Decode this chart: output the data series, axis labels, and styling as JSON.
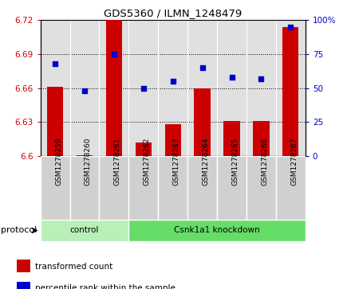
{
  "title": "GDS5360 / ILMN_1248479",
  "samples": [
    "GSM1278259",
    "GSM1278260",
    "GSM1278261",
    "GSM1278262",
    "GSM1278263",
    "GSM1278264",
    "GSM1278265",
    "GSM1278266",
    "GSM1278267"
  ],
  "bar_values": [
    6.661,
    6.601,
    6.72,
    6.612,
    6.628,
    6.66,
    6.631,
    6.631,
    6.714
  ],
  "dot_values": [
    68,
    48,
    75,
    50,
    55,
    65,
    58,
    57,
    95
  ],
  "bar_color": "#cc0000",
  "dot_color": "#0000cc",
  "ylim_left": [
    6.6,
    6.72
  ],
  "ylim_right": [
    0,
    100
  ],
  "yticks_left": [
    6.6,
    6.63,
    6.66,
    6.69,
    6.72
  ],
  "yticks_right": [
    0,
    25,
    50,
    75,
    100
  ],
  "ytick_labels_left": [
    "6.6",
    "6.63",
    "6.66",
    "6.69",
    "6.72"
  ],
  "ytick_labels_right": [
    "0",
    "25",
    "50",
    "75",
    "100%"
  ],
  "grid_yticks": [
    6.63,
    6.66,
    6.69
  ],
  "protocol_groups": [
    {
      "label": "control",
      "start": 0,
      "end": 2,
      "color": "#b8f0b8"
    },
    {
      "label": "Csnk1a1 knockdown",
      "start": 3,
      "end": 8,
      "color": "#66dd66"
    }
  ],
  "protocol_label": "protocol",
  "background_color": "#ffffff",
  "plot_bg_color": "#e0e0e0",
  "label_box_color": "#d0d0d0",
  "legend_items": [
    {
      "label": "transformed count",
      "color": "#cc0000"
    },
    {
      "label": "percentile rank within the sample",
      "color": "#0000cc"
    }
  ]
}
